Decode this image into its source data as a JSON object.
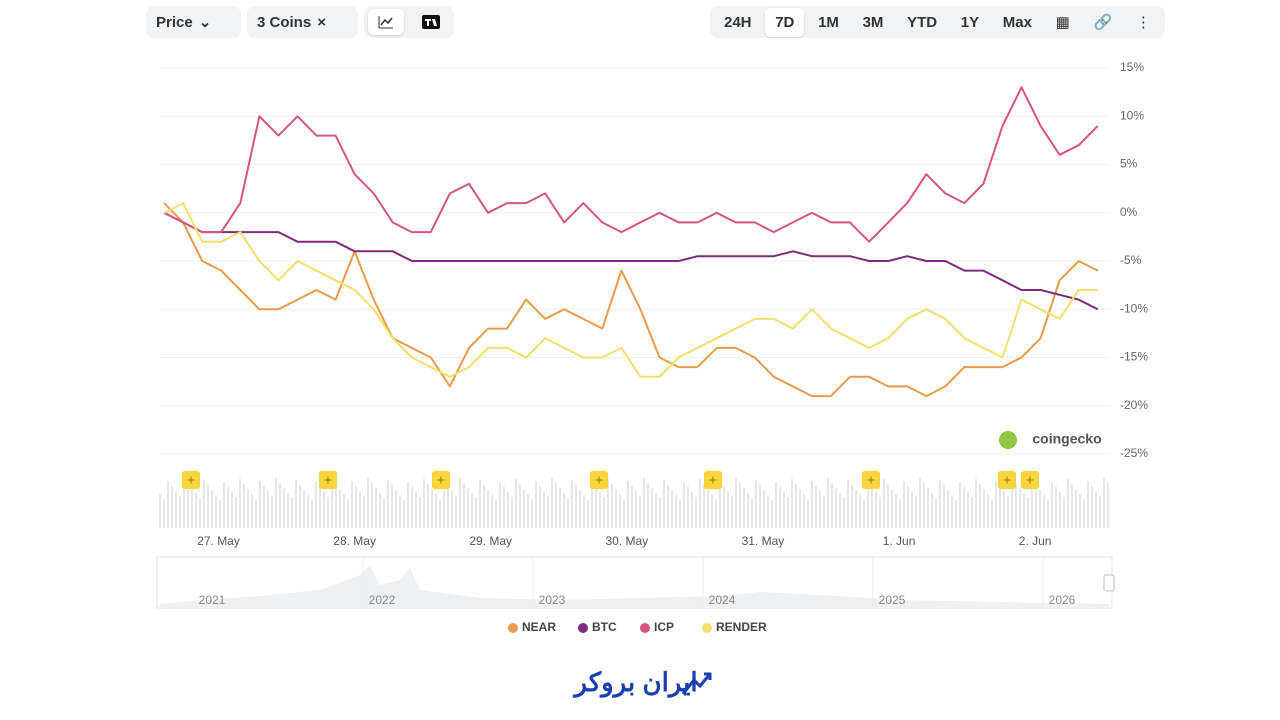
{
  "toolbar": {
    "metric": "Price",
    "coins": "3 Coins",
    "ranges": [
      "24H",
      "7D",
      "1M",
      "3M",
      "YTD",
      "1Y",
      "Max"
    ],
    "active_range": "7D"
  },
  "watermark": "coingecko",
  "navigator": {
    "years": [
      "2021",
      "2022",
      "2023",
      "2024",
      "2025",
      "2026"
    ]
  },
  "footer": {
    "brand": "ایران بروکر"
  },
  "chart_data": {
    "type": "line",
    "x": [
      0.6,
      0.74,
      0.88,
      1.02,
      1.16,
      1.3,
      1.44,
      1.58,
      1.72,
      1.86,
      2,
      2.14,
      2.28,
      2.42,
      2.56,
      2.7,
      2.84,
      2.98,
      3.12,
      3.26,
      3.4,
      3.54,
      3.68,
      3.82,
      3.96,
      4.1,
      4.24,
      4.38,
      4.52,
      4.66,
      4.8,
      4.94,
      5.08,
      5.22,
      5.36,
      5.5,
      5.64,
      5.78,
      5.92,
      6.06,
      6.2,
      6.34,
      6.48,
      6.62,
      6.76,
      6.9,
      7.04,
      7.18,
      7.32,
      7.46
    ],
    "xlim": [
      0.57,
      7.55
    ],
    "xticks": [
      {
        "value": 1,
        "label": "27. May"
      },
      {
        "value": 2,
        "label": "28. May"
      },
      {
        "value": 3,
        "label": "29. May"
      },
      {
        "value": 4,
        "label": "30. May"
      },
      {
        "value": 5,
        "label": "31. May"
      },
      {
        "value": 6,
        "label": "1. Jun"
      },
      {
        "value": 7,
        "label": "2. Jun"
      }
    ],
    "ylim": [
      -25,
      15
    ],
    "yticks": [
      {
        "value": 15,
        "label": "15%"
      },
      {
        "value": 10,
        "label": "10%"
      },
      {
        "value": 5,
        "label": "5%"
      },
      {
        "value": 0,
        "label": "0%"
      },
      {
        "value": -5,
        "label": "-5%"
      },
      {
        "value": -10,
        "label": "-10%"
      },
      {
        "value": -15,
        "label": "-15%"
      },
      {
        "value": -20,
        "label": "-20%"
      },
      {
        "value": -25,
        "label": "-25%"
      }
    ],
    "grid": true,
    "series": [
      {
        "name": "NEAR",
        "color": "#eb9a4c",
        "values": [
          1,
          -1,
          -5,
          -6,
          -8,
          -10,
          -10,
          -9,
          -8,
          -9,
          -4,
          -9,
          -13,
          -14,
          -15,
          -18,
          -14,
          -12,
          -12,
          -9,
          -11,
          -10,
          -11,
          -12,
          -6,
          -10,
          -15,
          -16,
          -16,
          -14,
          -14,
          -15,
          -17,
          -18,
          -19,
          -19,
          -17,
          -17,
          -18,
          -18,
          -19,
          -18,
          -16,
          -16,
          -16,
          -15,
          -13,
          -7,
          -5,
          -6
        ]
      },
      {
        "name": "BTC",
        "color": "#7e2a7e",
        "values": [
          0,
          -1,
          -2,
          -2,
          -2,
          -2,
          -2,
          -3,
          -3,
          -3,
          -4,
          -4,
          -4,
          -5,
          -5,
          -5,
          -5,
          -5,
          -5,
          -5,
          -5,
          -5,
          -5,
          -5,
          -5,
          -5,
          -5,
          -5,
          -4.5,
          -4.5,
          -4.5,
          -4.5,
          -4.5,
          -4,
          -4.5,
          -4.5,
          -4.5,
          -5,
          -5,
          -4.5,
          -5,
          -5,
          -6,
          -6,
          -7,
          -8,
          -8,
          -8.5,
          -9,
          -10
        ]
      },
      {
        "name": "ICP",
        "color": "#d4577b",
        "values": [
          0,
          -1,
          -2,
          -2,
          1,
          10,
          8,
          10,
          8,
          8,
          4,
          2,
          -1,
          -2,
          -2,
          2,
          3,
          0,
          1,
          1,
          2,
          -1,
          1,
          -1,
          -2,
          -1,
          0,
          -1,
          -1,
          0,
          -1,
          -1,
          -2,
          -1,
          0,
          -1,
          -1,
          -3,
          -1,
          1,
          4,
          2,
          1,
          3,
          9,
          13,
          9,
          6,
          7,
          9
        ]
      },
      {
        "name": "RENDER",
        "color": "#f3df6c",
        "values": [
          0,
          1,
          -3,
          -3,
          -2,
          -5,
          -7,
          -5,
          -6,
          -7,
          -8,
          -10,
          -13,
          -15,
          -16,
          -17,
          -16,
          -14,
          -14,
          -15,
          -13,
          -14,
          -15,
          -15,
          -14,
          -17,
          -17,
          -15,
          -14,
          -13,
          -12,
          -11,
          -11,
          -12,
          -10,
          -12,
          -13,
          -14,
          -13,
          -11,
          -10,
          -11,
          -13,
          -14,
          -15,
          -9,
          -10,
          -11,
          -8,
          -8
        ]
      }
    ]
  }
}
